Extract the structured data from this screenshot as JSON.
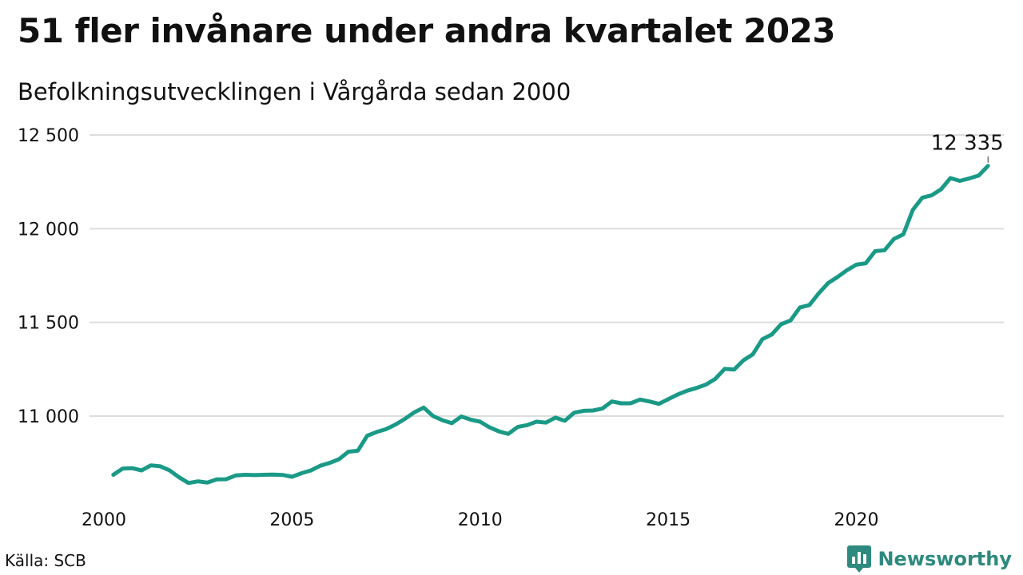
{
  "header": {
    "title": "51 fler invånare under andra kvartalet 2023",
    "subtitle": "Befolkningsutvecklingen i Vårgårda sedan 2000"
  },
  "footer": {
    "source": "Källa: SCB",
    "brand": "Newsworthy"
  },
  "colors": {
    "line": "#1a9a86",
    "grid": "#dddddd",
    "brand": "#2e8a7e"
  },
  "chart_data": {
    "type": "line",
    "ylim": [
      10600,
      12550
    ],
    "xlim": [
      2000,
      2023.75
    ],
    "y_ticks": [
      11000,
      11500,
      12000,
      12500
    ],
    "y_tick_labels": [
      "11 000",
      "11 500",
      "12 000",
      "12 500"
    ],
    "x_ticks": [
      2000,
      2005,
      2010,
      2015,
      2020
    ],
    "x_tick_labels": [
      "2000",
      "2005",
      "2010",
      "2015",
      "2020"
    ],
    "grid": true,
    "last_value_label": "12 335",
    "series": [
      {
        "x": [
          2000.25,
          2000.5,
          2000.75,
          2001,
          2001.25,
          2001.5,
          2001.75,
          2002,
          2002.25,
          2002.5,
          2002.75,
          2003,
          2003.25,
          2003.5,
          2003.75,
          2004,
          2004.25,
          2004.5,
          2004.75,
          2005,
          2005.25,
          2005.5,
          2005.75,
          2006,
          2006.25,
          2006.5,
          2006.75,
          2007,
          2007.25,
          2007.5,
          2007.75,
          2008,
          2008.25,
          2008.5,
          2008.75,
          2009,
          2009.25,
          2009.5,
          2009.75,
          2010,
          2010.25,
          2010.5,
          2010.75,
          2011,
          2011.25,
          2011.5,
          2011.75,
          2012,
          2012.25,
          2012.5,
          2012.75,
          2013,
          2013.25,
          2013.5,
          2013.75,
          2014,
          2014.25,
          2014.5,
          2014.75,
          2015,
          2015.25,
          2015.5,
          2015.75,
          2016,
          2016.25,
          2016.5,
          2016.75,
          2017,
          2017.25,
          2017.5,
          2017.75,
          2018,
          2018.25,
          2018.5,
          2018.75,
          2019,
          2019.25,
          2019.5,
          2019.75,
          2020,
          2020.25,
          2020.5,
          2020.75,
          2021,
          2021.25,
          2021.5,
          2021.75,
          2022,
          2022.25,
          2022.5,
          2022.75,
          2023,
          2023.25,
          2023.5
        ],
        "values": [
          10687,
          10720,
          10722,
          10710,
          10737,
          10732,
          10710,
          10673,
          10643,
          10652,
          10645,
          10662,
          10663,
          10683,
          10687,
          10685,
          10687,
          10688,
          10686,
          10676,
          10695,
          10710,
          10735,
          10750,
          10770,
          10810,
          10815,
          10895,
          10915,
          10930,
          10955,
          10985,
          11020,
          11045,
          11000,
          10978,
          10962,
          10998,
          10981,
          10970,
          10940,
          10918,
          10905,
          10942,
          10952,
          10970,
          10965,
          10992,
          10975,
          11018,
          11028,
          11030,
          11040,
          11078,
          11068,
          11068,
          11088,
          11078,
          11065,
          11090,
          11115,
          11135,
          11150,
          11168,
          11198,
          11252,
          11248,
          11298,
          11330,
          11410,
          11435,
          11490,
          11510,
          11580,
          11592,
          11655,
          11710,
          11742,
          11778,
          11808,
          11815,
          11880,
          11885,
          11945,
          11970,
          12100,
          12165,
          12178,
          12210,
          12270,
          12255,
          12268,
          12283,
          12335
        ]
      }
    ]
  }
}
